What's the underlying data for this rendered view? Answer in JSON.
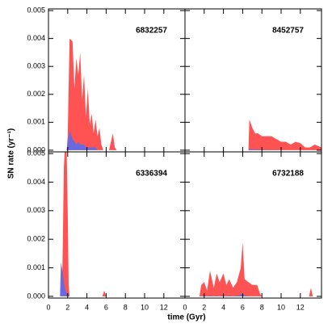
{
  "axis_labels": {
    "x": "time (Gyr)",
    "y": "SN rate (yr⁻¹)"
  },
  "chart_data": [
    {
      "type": "area",
      "label": "6832257",
      "x_tick_labels": false,
      "y_tick_labels": true,
      "xlim": [
        0,
        14.2
      ],
      "ylim": [
        -6e-05,
        0.00506
      ],
      "xticks": [
        0,
        2,
        4,
        6,
        8,
        10,
        12
      ],
      "yticks": [
        {
          "value": 0,
          "label": "0.000"
        },
        {
          "value": 0.001,
          "label": "0.001"
        },
        {
          "value": 0.002,
          "label": "0.002"
        },
        {
          "value": 0.003,
          "label": "0.003"
        },
        {
          "value": 0.004,
          "label": "0.004"
        },
        {
          "value": 0.005,
          "label": "0.005"
        }
      ],
      "x": [
        0,
        1.9,
        2.0,
        2.2,
        2.5,
        2.7,
        2.9,
        3.1,
        3.3,
        3.5,
        3.7,
        3.9,
        4.1,
        4.3,
        4.5,
        4.7,
        4.9,
        5.1,
        5.3,
        5.5,
        5.7,
        6.3,
        6.5,
        6.7,
        6.9,
        7.1,
        14.2
      ],
      "series": [
        {
          "name": "red",
          "color": "#ff5252",
          "values": [
            0,
            0,
            0.0005,
            0.004,
            0.0039,
            0.0022,
            0.0033,
            0.0027,
            0.0035,
            0.0018,
            0.0027,
            0.0012,
            0.0022,
            0.0009,
            0.0013,
            0.0006,
            0.0011,
            0.0005,
            0.0008,
            0.0002,
            0,
            0,
            0.0003,
            0.0006,
            0.0001,
            0,
            0
          ]
        },
        {
          "name": "blue",
          "color": "#6a6ae0",
          "values": [
            0,
            0,
            0.0003,
            0.0007,
            0.0004,
            0.0003,
            0.0002,
            0.0003,
            0.0002,
            0.0002,
            0.0002,
            0.0001,
            0.0001,
            0.0001,
            0.0001,
            0.0001,
            0.0001,
            0,
            0,
            0,
            0,
            0,
            0,
            0,
            0,
            0,
            0
          ]
        }
      ]
    },
    {
      "type": "area",
      "label": "8452757",
      "x_tick_labels": false,
      "y_tick_labels": false,
      "xlim": [
        0,
        14.2
      ],
      "ylim": [
        -6e-05,
        0.00506
      ],
      "xticks": [
        0,
        2,
        4,
        6,
        8,
        10,
        12
      ],
      "yticks": [
        0,
        0.001,
        0.002,
        0.003,
        0.004,
        0.005
      ],
      "x": [
        0,
        6.6,
        6.7,
        7.0,
        7.3,
        7.6,
        8.0,
        8.5,
        9.0,
        9.5,
        10.0,
        10.5,
        11.0,
        11.5,
        12.0,
        12.5,
        13.0,
        13.5,
        14.2
      ],
      "series": [
        {
          "name": "red",
          "color": "#ff5252",
          "values": [
            0,
            0,
            0.0011,
            0.0008,
            0.0006,
            0.0006,
            0.0005,
            0.0005,
            0.0005,
            0.0004,
            0.0003,
            0.0003,
            0.0002,
            0.0003,
            0.00025,
            0.0001,
            0.0001,
            0.0002,
            0.0001
          ]
        },
        {
          "name": "blue",
          "color": "#6a6ae0",
          "values": [
            0,
            0,
            5e-05,
            3e-05,
            2e-05,
            2e-05,
            2e-05,
            1e-05,
            1e-05,
            1e-05,
            0,
            0,
            0,
            0,
            0,
            0,
            0,
            0,
            0
          ]
        }
      ]
    },
    {
      "type": "area",
      "label": "6336394",
      "x_tick_labels": true,
      "y_tick_labels": true,
      "xlim": [
        0,
        14.2
      ],
      "ylim": [
        -6e-05,
        0.00506
      ],
      "xticks": [
        0,
        2,
        4,
        6,
        8,
        10,
        12
      ],
      "yticks": [
        {
          "value": 0,
          "label": "0.000"
        },
        {
          "value": 0.001,
          "label": "0.001"
        },
        {
          "value": 0.002,
          "label": "0.002"
        },
        {
          "value": 0.003,
          "label": "0.003"
        },
        {
          "value": 0.004,
          "label": "0.004"
        },
        {
          "value": 0.005,
          "label": "0.005"
        }
      ],
      "x": [
        0,
        1.2,
        1.3,
        1.4,
        1.5,
        1.6,
        1.7,
        1.8,
        1.9,
        2.0,
        2.1,
        2.2,
        5.6,
        5.8,
        6.0,
        14.2
      ],
      "series": [
        {
          "name": "red",
          "color": "#ff5252",
          "values": [
            0,
            0,
            0,
            0,
            0.002,
            0.0045,
            0.0052,
            0.0052,
            0.005,
            0.003,
            0.0004,
            0,
            0,
            0.0002,
            0,
            0
          ]
        },
        {
          "name": "blue",
          "color": "#6a6ae0",
          "values": [
            0,
            0,
            0.0012,
            0.001,
            0.0008,
            0.0005,
            0.0003,
            0.0002,
            0.0001,
            0.0001,
            0,
            0,
            0,
            0,
            0,
            0
          ]
        }
      ]
    },
    {
      "type": "area",
      "label": "6732188",
      "x_tick_labels": true,
      "y_tick_labels": false,
      "xlim": [
        0,
        14.2
      ],
      "ylim": [
        -6e-05,
        0.00506
      ],
      "xticks": [
        0,
        2,
        4,
        6,
        8,
        10,
        12
      ],
      "yticks": [
        0,
        0.001,
        0.002,
        0.003,
        0.004,
        0.005
      ],
      "x": [
        0,
        1.5,
        1.7,
        2.0,
        2.3,
        2.6,
        3.0,
        3.3,
        3.6,
        4.0,
        4.3,
        4.6,
        5.0,
        5.4,
        5.8,
        6.0,
        6.2,
        6.6,
        7.0,
        7.5,
        7.8,
        8.0,
        12.9,
        13.1,
        13.3,
        14.2
      ],
      "series": [
        {
          "name": "red",
          "color": "#ff5252",
          "values": [
            0,
            0,
            0.0004,
            0.0005,
            0.0002,
            0.0009,
            0.0003,
            0.0008,
            0.0005,
            0.0008,
            0.0004,
            0.0006,
            0.0003,
            0.0005,
            0.001,
            0.0019,
            0.0006,
            0.0005,
            0.0004,
            0.0004,
            0.0001,
            0,
            0,
            0.0003,
            0,
            0
          ]
        },
        {
          "name": "blue",
          "color": "#6a6ae0",
          "values": [
            0,
            0,
            0,
            3e-05,
            0,
            3e-05,
            0,
            2e-05,
            0,
            2e-05,
            0,
            2e-05,
            0,
            3e-05,
            5e-05,
            0.0001,
            3e-05,
            0,
            0,
            0,
            0,
            0,
            0,
            0,
            0,
            0
          ]
        }
      ]
    }
  ]
}
